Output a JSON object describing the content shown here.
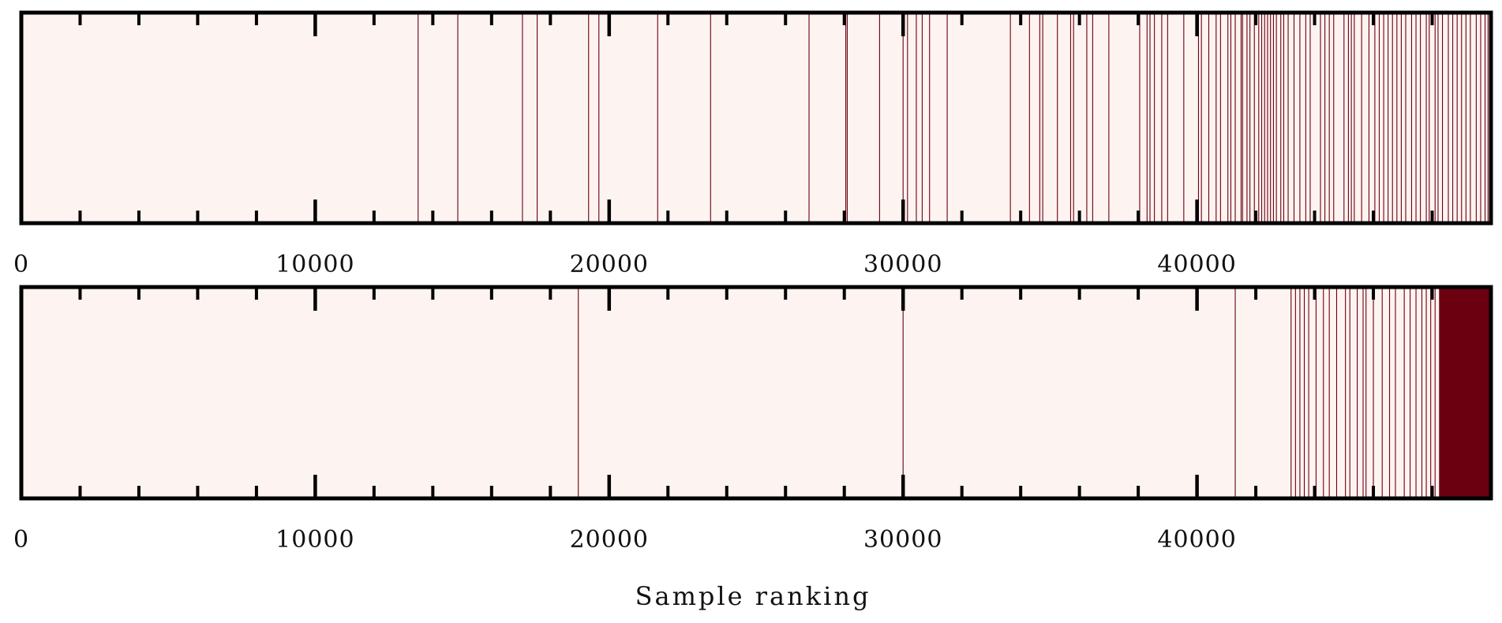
{
  "chart_data": {
    "type": "heatmap",
    "xlabel": "Sample ranking",
    "xlim": [
      0,
      50000
    ],
    "colors": {
      "background": "#fdf3f0",
      "mark": "#6b0010",
      "frame": "#000000"
    },
    "tick_labels": [
      "0",
      "10000",
      "20000",
      "30000",
      "40000"
    ],
    "tick_values": [
      0,
      10000,
      20000,
      30000,
      40000
    ],
    "minor_tick_step": 2000,
    "panels": [
      {
        "marks": [
          13500,
          14850,
          17050,
          17550,
          19300,
          19650,
          21650,
          23450,
          26800,
          28050,
          28100,
          29200,
          30000,
          30150,
          30450,
          30650,
          30900,
          31500,
          33650,
          34300,
          34650,
          34750,
          35250,
          35700,
          35800,
          36250,
          36450,
          37000,
          38050,
          38300,
          38400,
          38550,
          38800,
          39000,
          39550,
          40050,
          40150,
          40400,
          40650,
          40800,
          41050,
          41150,
          41300,
          41500,
          41550,
          41700,
          41800,
          41950,
          42100,
          42200,
          42300,
          42400,
          42500,
          42600,
          42700,
          42850,
          42950,
          43100,
          43300,
          43500,
          43700,
          43850,
          44200,
          44350,
          44500,
          44650,
          45000,
          45150,
          45250,
          45350,
          45600,
          45850,
          46050,
          46200,
          46350,
          46500,
          46650,
          46800,
          46950,
          47100,
          47300,
          47450,
          47600,
          47800,
          47900,
          48100,
          48200,
          48350,
          48550,
          48700,
          48850,
          49000,
          49150,
          49300,
          49500,
          49650,
          49800,
          49900
        ],
        "filled_range": []
      },
      {
        "marks": [
          18950,
          30000,
          41300,
          43200,
          43350,
          43500,
          43650,
          43800,
          44050,
          44300,
          44500,
          44750,
          45050,
          45200,
          45450,
          45650,
          45750,
          46000,
          46300,
          46550,
          46750,
          47050,
          47250,
          47450,
          47650,
          47800,
          47950,
          48100,
          48250
        ],
        "filled_range": [
          48250,
          50000
        ]
      }
    ]
  }
}
